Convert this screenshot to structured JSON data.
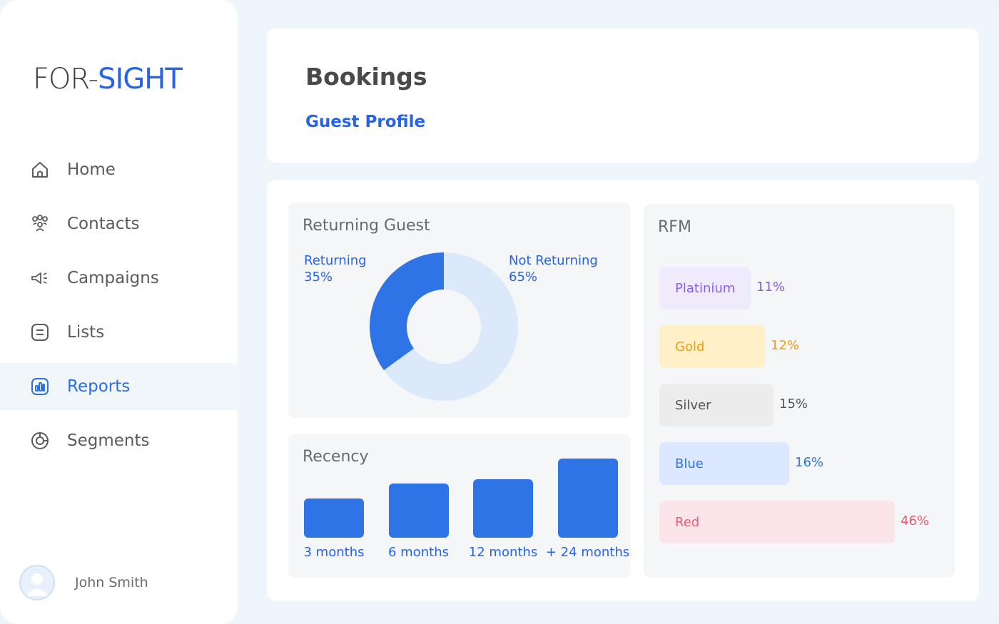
{
  "brand": {
    "part1": "FOR-",
    "part2": "SIGHT"
  },
  "sidebar": {
    "items": [
      {
        "label": "Home",
        "icon": "home-icon",
        "active": false
      },
      {
        "label": "Contacts",
        "icon": "contacts-icon",
        "active": false
      },
      {
        "label": "Campaigns",
        "icon": "megaphone-icon",
        "active": false
      },
      {
        "label": "Lists",
        "icon": "list-icon",
        "active": false
      },
      {
        "label": "Reports",
        "icon": "reports-icon",
        "active": true
      },
      {
        "label": "Segments",
        "icon": "segments-icon",
        "active": false
      }
    ],
    "user": {
      "name": "John Smith",
      "icon": "avatar-icon"
    }
  },
  "header": {
    "title": "Bookings",
    "subtitle": "Guest Profile"
  },
  "returning_panel": {
    "title": "Returning Guest",
    "returning_label": "Returning",
    "returning_value": "35%",
    "not_returning_label": "Not Returning",
    "not_returning_value": "65%"
  },
  "recency_panel": {
    "title": "Recency"
  },
  "rfm_panel": {
    "title": "RFM"
  },
  "colors": {
    "accent": "#2563eb",
    "bar": "#2f74e6",
    "donut_light": "#dce9fb"
  },
  "chart_data": [
    {
      "type": "pie",
      "title": "Returning Guest",
      "categories": [
        "Returning",
        "Not Returning"
      ],
      "values": [
        35,
        65
      ]
    },
    {
      "type": "bar",
      "title": "Recency",
      "categories": [
        "3 months",
        "6 months",
        "12 months",
        "+ 24 months"
      ],
      "values": [
        55,
        76,
        82,
        111
      ]
    },
    {
      "type": "bar",
      "title": "RFM",
      "categories": [
        "Platinium",
        "Gold",
        "Silver",
        "Blue",
        "Red"
      ],
      "values": [
        11,
        12,
        15,
        16,
        46
      ],
      "labels": [
        "11%",
        "12%",
        "15%",
        "16%",
        "46%"
      ],
      "colors": [
        {
          "bg": "#efeafc",
          "fg": "#8b5cf6"
        },
        {
          "bg": "#fff0c7",
          "fg": "#f59e0b"
        },
        {
          "bg": "#ececec",
          "fg": "#555555"
        },
        {
          "bg": "#dbe8fd",
          "fg": "#2f74e6"
        },
        {
          "bg": "#fbe5ea",
          "fg": "#ef5a6f"
        }
      ]
    }
  ]
}
